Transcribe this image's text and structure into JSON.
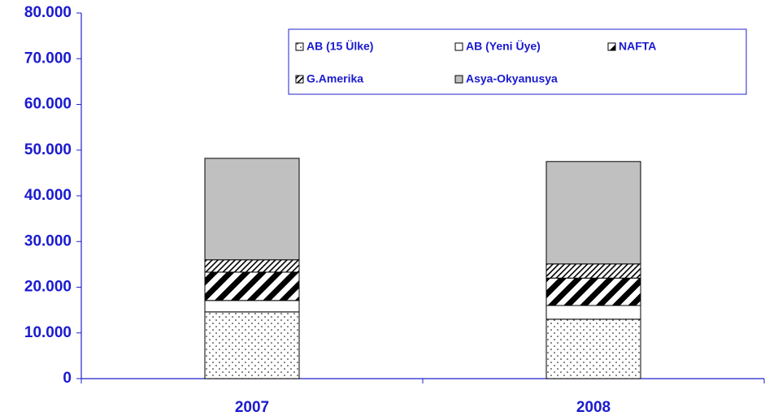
{
  "chart_data": {
    "type": "stacked_bar",
    "categories": [
      "2007",
      "2008"
    ],
    "series": [
      {
        "name": "AB (15 Ülke)",
        "color": "#ffffff",
        "pattern": "dots",
        "values": [
          14600,
          13000
        ]
      },
      {
        "name": "AB (Yeni Üye)",
        "color": "#ffffff",
        "pattern": "none",
        "values": [
          2500,
          3000
        ]
      },
      {
        "name": "NAFTA",
        "color": "#ffffff",
        "pattern": "thick-stripes",
        "values": [
          6200,
          6000
        ]
      },
      {
        "name": "G.Amerika",
        "color": "#ffffff",
        "pattern": "thin-stripes",
        "values": [
          2700,
          3100
        ]
      },
      {
        "name": "Asya-Okyanusya",
        "color": "#c0c0c0",
        "pattern": "none",
        "values": [
          22200,
          22400
        ]
      }
    ],
    "ylim": [
      0,
      80000
    ],
    "yticks": [
      0,
      {
        "value": 10000,
        "label": "10.000"
      },
      {
        "value": 20000,
        "label": "20.000"
      },
      {
        "value": 30000,
        "label": "30.000"
      },
      {
        "value": 40000,
        "label": "40.000"
      },
      {
        "value": 50000,
        "label": "50.000"
      },
      {
        "value": 60000,
        "label": "60.000"
      },
      {
        "value": 70000,
        "label": "70.000"
      },
      {
        "value": 80000,
        "label": "80.000"
      }
    ],
    "grid": false,
    "legend": "top-right"
  }
}
